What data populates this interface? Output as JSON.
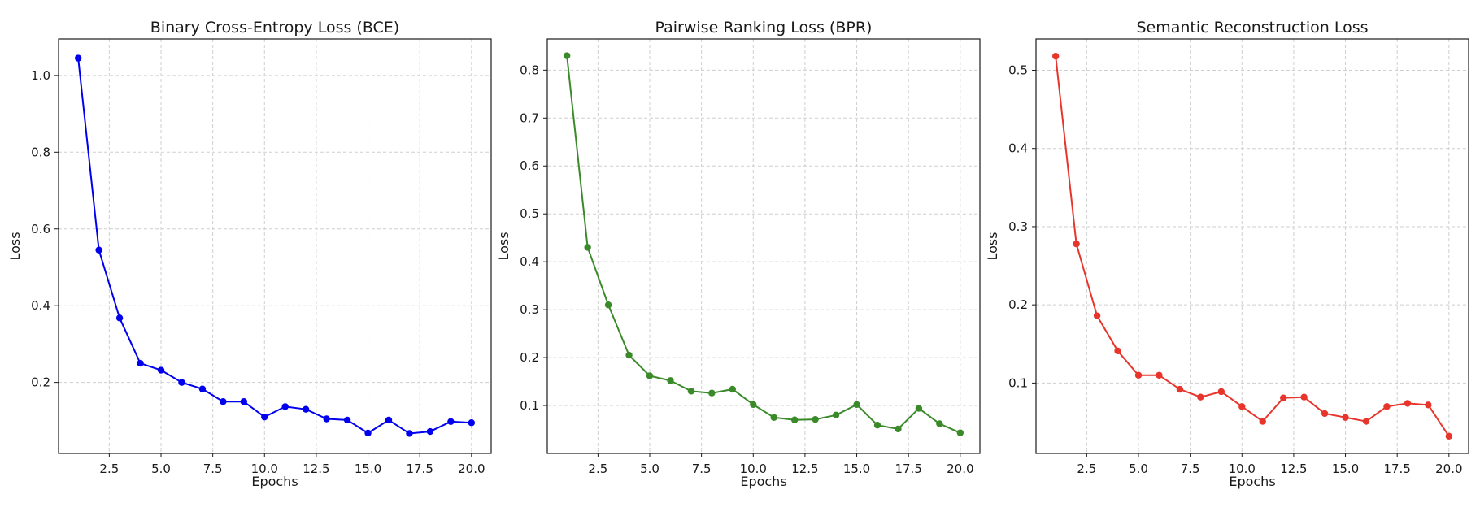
{
  "chart_data": [
    {
      "type": "line",
      "title": "Binary Cross-Entropy Loss (BCE)",
      "xlabel": "Epochs",
      "ylabel": "Loss",
      "color": "#0000ee",
      "xlim": [
        0.05,
        20.95
      ],
      "ylim": [
        0.015,
        1.095
      ],
      "xticks": [
        2.5,
        5.0,
        7.5,
        10.0,
        12.5,
        15.0,
        17.5,
        20.0
      ],
      "xtick_labels": [
        "2.5",
        "5.0",
        "7.5",
        "10.0",
        "12.5",
        "15.0",
        "17.5",
        "20.0"
      ],
      "yticks": [
        0.2,
        0.4,
        0.6,
        0.8,
        1.0
      ],
      "ytick_labels": [
        "0.2",
        "0.4",
        "0.6",
        "0.8",
        "1.0"
      ],
      "grid": true,
      "x": [
        1,
        2,
        3,
        4,
        5,
        6,
        7,
        8,
        9,
        10,
        11,
        12,
        13,
        14,
        15,
        16,
        17,
        18,
        19,
        20
      ],
      "y": [
        1.045,
        0.545,
        0.368,
        0.25,
        0.232,
        0.2,
        0.183,
        0.15,
        0.15,
        0.11,
        0.137,
        0.13,
        0.105,
        0.102,
        0.068,
        0.102,
        0.067,
        0.072,
        0.098,
        0.095
      ]
    },
    {
      "type": "line",
      "title": "Pairwise Ranking Loss (BPR)",
      "xlabel": "Epochs",
      "ylabel": "Loss",
      "color": "#3a8a2a",
      "xlim": [
        0.05,
        20.95
      ],
      "ylim": [
        0.0,
        0.865
      ],
      "xticks": [
        2.5,
        5.0,
        7.5,
        10.0,
        12.5,
        15.0,
        17.5,
        20.0
      ],
      "xtick_labels": [
        "2.5",
        "5.0",
        "7.5",
        "10.0",
        "12.5",
        "15.0",
        "17.5",
        "20.0"
      ],
      "yticks": [
        0.1,
        0.2,
        0.3,
        0.4,
        0.5,
        0.6,
        0.7,
        0.8
      ],
      "ytick_labels": [
        "0.1",
        "0.2",
        "0.3",
        "0.4",
        "0.5",
        "0.6",
        "0.7",
        "0.8"
      ],
      "grid": true,
      "x": [
        1,
        2,
        3,
        4,
        5,
        6,
        7,
        8,
        9,
        10,
        11,
        12,
        13,
        14,
        15,
        16,
        17,
        18,
        19,
        20
      ],
      "y": [
        0.83,
        0.43,
        0.31,
        0.205,
        0.162,
        0.152,
        0.13,
        0.126,
        0.134,
        0.102,
        0.075,
        0.07,
        0.071,
        0.08,
        0.102,
        0.059,
        0.051,
        0.094,
        0.062,
        0.043
      ]
    },
    {
      "type": "line",
      "title": "Semantic Reconstruction Loss",
      "xlabel": "Epochs",
      "ylabel": "Loss",
      "color": "#e8352b",
      "xlim": [
        0.05,
        20.95
      ],
      "ylim": [
        0.01,
        0.54
      ],
      "xticks": [
        2.5,
        5.0,
        7.5,
        10.0,
        12.5,
        15.0,
        17.5,
        20.0
      ],
      "xtick_labels": [
        "2.5",
        "5.0",
        "7.5",
        "10.0",
        "12.5",
        "15.0",
        "17.5",
        "20.0"
      ],
      "yticks": [
        0.1,
        0.2,
        0.3,
        0.4,
        0.5
      ],
      "ytick_labels": [
        "0.1",
        "0.2",
        "0.3",
        "0.4",
        "0.5"
      ],
      "grid": true,
      "x": [
        1,
        2,
        3,
        4,
        5,
        6,
        7,
        8,
        9,
        10,
        11,
        12,
        13,
        14,
        15,
        16,
        17,
        18,
        19,
        20
      ],
      "y": [
        0.518,
        0.278,
        0.186,
        0.141,
        0.11,
        0.11,
        0.092,
        0.082,
        0.089,
        0.07,
        0.051,
        0.081,
        0.082,
        0.061,
        0.056,
        0.051,
        0.07,
        0.074,
        0.072,
        0.032
      ]
    }
  ]
}
